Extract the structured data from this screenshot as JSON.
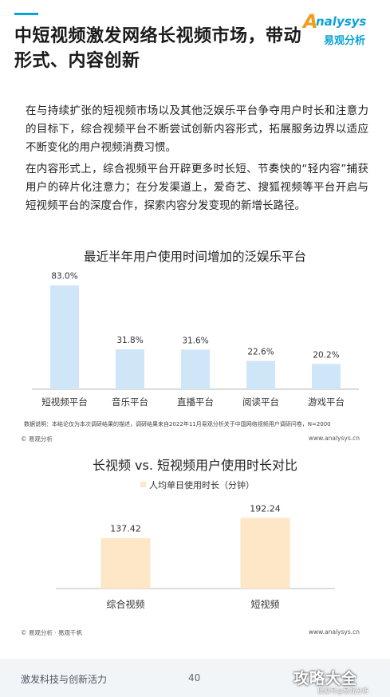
{
  "header": {
    "title": "中短视频激发网络长视频市场，带动形式、内容创新",
    "logo_en": "nalysys",
    "logo_letter": "A",
    "logo_cn": "易观分析"
  },
  "body": {
    "paragraph1": "在与持续扩张的短视频市场以及其他泛娱乐平台争夺用户时长和注意力的目标下，综合视频平台不断尝试创新内容形式，拓展服务边界以适应不断变化的用户视频消费习惯。",
    "paragraph2": "在内容形式上，综合视频平台开辟更多时长短、节奏快的“轻内容”捕获用户的碎片化注意力；在分发渠道上，爱奇艺、搜狐视频等平台开启与短视频平台的深度合作，探索内容分发变现的新增长路径。"
  },
  "chart_data": [
    {
      "type": "bar",
      "title": "最近半年用户使用时间增加的泛娱乐平台",
      "categories": [
        "短视频平台",
        "音乐平台",
        "直播平台",
        "阅读平台",
        "游戏平台"
      ],
      "values": [
        83.0,
        31.8,
        31.6,
        22.6,
        20.2
      ],
      "value_labels": [
        "83.0%",
        "31.8%",
        "31.6%",
        "22.6%",
        "20.2%"
      ],
      "unit": "%",
      "ylim": [
        0,
        100
      ],
      "grid": false,
      "color": "#cfe6f8",
      "note": "数据说明：本结论仅为本次调研结果的描述，调研结果来自2022年11月易观分析关于中国网络视频用户调研问卷，N=2000",
      "source": "© 易观分析",
      "website": "www.analysys.cn"
    },
    {
      "type": "bar",
      "title": "长视频 vs. 短视频用户使用时长对比",
      "legend": [
        "人均单日使用时长（分钟）"
      ],
      "legend_position": "top-left",
      "categories": [
        "综合视频",
        "短视频"
      ],
      "values": [
        137.42,
        192.24
      ],
      "value_labels": [
        "137.42",
        "192.24"
      ],
      "ylim": [
        0,
        230
      ],
      "grid": false,
      "color": "#fde7c6",
      "source": "© 易观分析 · 易观千帆",
      "website": "www.analysys.cn"
    }
  ],
  "footer": {
    "text": "激发科技与创新活力",
    "page": "40",
    "watermark": "攻略大全",
    "watermark_small": "搜狐号@易观分析"
  }
}
